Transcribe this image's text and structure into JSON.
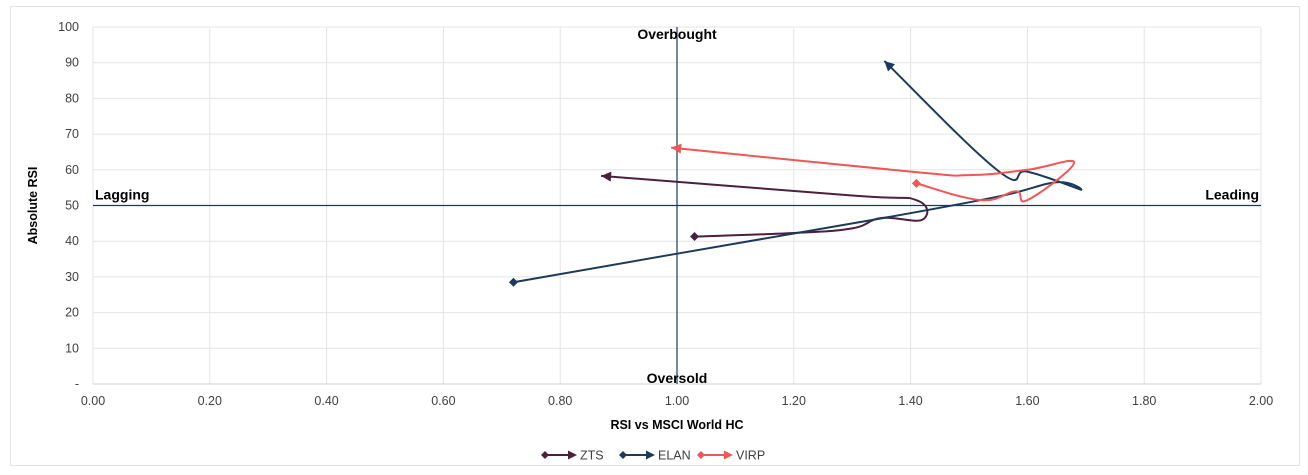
{
  "chart_data": {
    "type": "line",
    "xlabel": "RSI vs MSCI World HC",
    "ylabel": "Absolute RSI",
    "xlim": [
      0,
      2
    ],
    "ylim": [
      0,
      100
    ],
    "x_ticks": [
      0,
      0.2,
      0.4,
      0.6,
      0.8,
      1.0,
      1.2,
      1.4,
      1.6,
      1.8,
      2.0
    ],
    "x_tick_labels": [
      "0.00",
      "0.20",
      "0.40",
      "0.60",
      "0.80",
      "1.00",
      "1.20",
      "1.40",
      "1.60",
      "1.80",
      "2.00"
    ],
    "y_ticks": [
      0,
      10,
      20,
      30,
      40,
      50,
      60,
      70,
      80,
      90,
      100
    ],
    "y_tick_labels": [
      "-",
      "10",
      "20",
      "30",
      "40",
      "50",
      "60",
      "70",
      "80",
      "90",
      "100"
    ],
    "grid": true,
    "legend_position": "bottom",
    "reference_lines": {
      "x": 1.0,
      "y": 50
    },
    "quadrant_labels": {
      "top": "Overbought",
      "bottom": "Oversold",
      "left": "Lagging",
      "right": "Leading"
    },
    "series": [
      {
        "name": "ZTS",
        "color": "#4d1f3f",
        "points": [
          [
            1.03,
            41.3
          ],
          [
            1.2,
            42.3
          ],
          [
            1.3,
            43.6
          ],
          [
            1.35,
            46.5
          ],
          [
            1.42,
            46.0
          ],
          [
            1.41,
            51.5
          ],
          [
            1.3,
            52.8
          ],
          [
            0.87,
            58.3
          ]
        ]
      },
      {
        "name": "ELAN",
        "color": "#1b3a5c",
        "points": [
          [
            0.72,
            28.5
          ],
          [
            1.0,
            36.5
          ],
          [
            1.35,
            46.4
          ],
          [
            1.55,
            52.5
          ],
          [
            1.65,
            56.5
          ],
          [
            1.69,
            54.5
          ],
          [
            1.6,
            59.5
          ],
          [
            1.55,
            59.7
          ],
          [
            1.355,
            90.5
          ]
        ]
      },
      {
        "name": "VIRP",
        "color": "#f25555",
        "points": [
          [
            1.41,
            56.2
          ],
          [
            1.52,
            51.5
          ],
          [
            1.58,
            54.0
          ],
          [
            1.6,
            51.5
          ],
          [
            1.68,
            62.0
          ],
          [
            1.6,
            60.0
          ],
          [
            1.5,
            58.5
          ],
          [
            1.4,
            59.5
          ],
          [
            0.99,
            66.2
          ]
        ]
      }
    ]
  }
}
